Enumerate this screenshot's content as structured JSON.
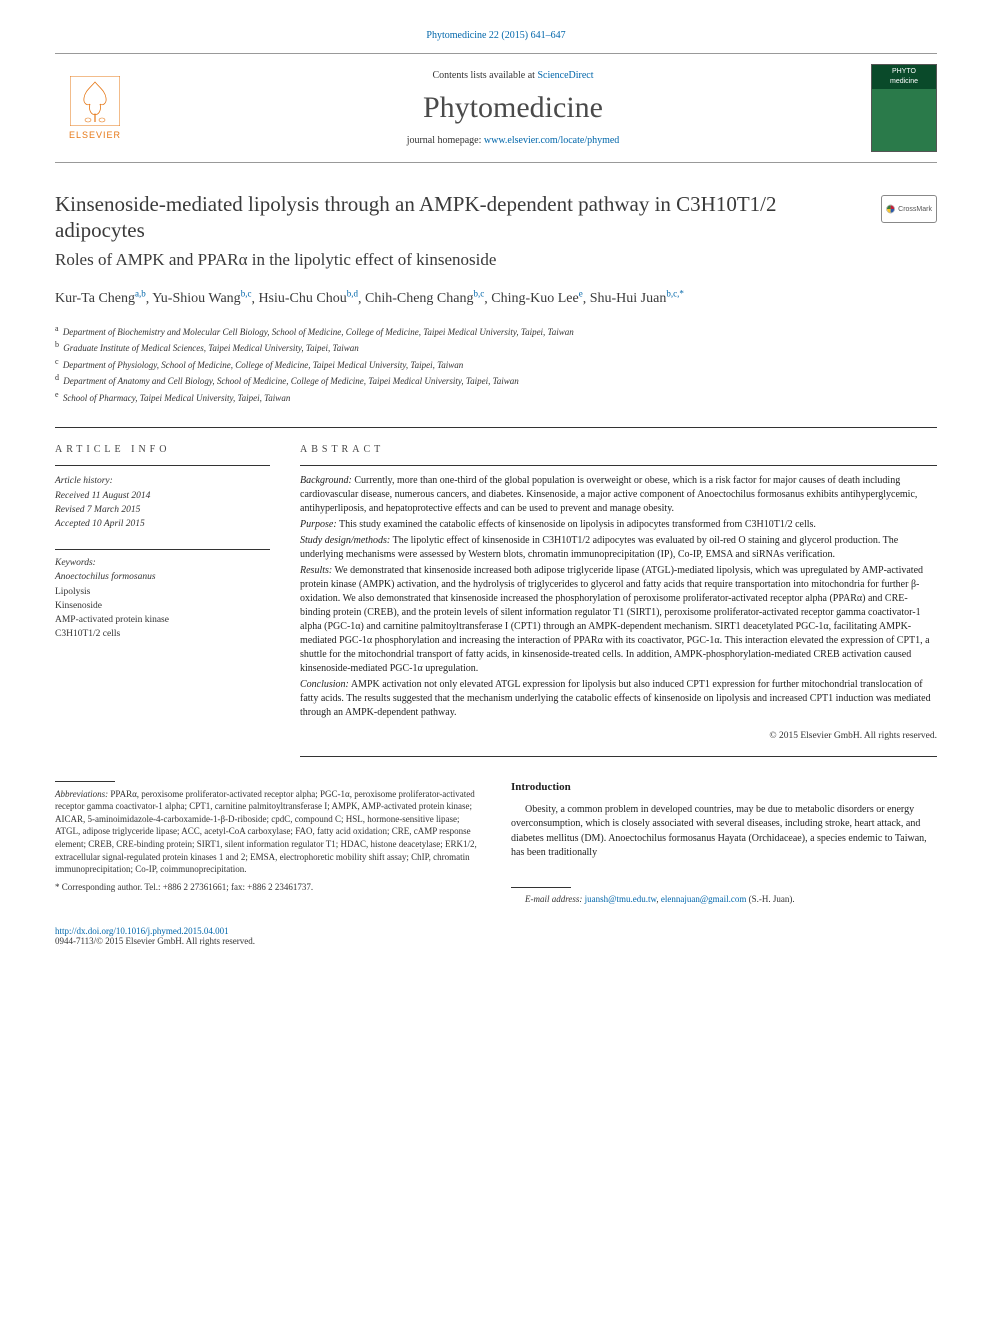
{
  "topLink": "Phytomedicine 22 (2015) 641–647",
  "masthead": {
    "contentsPrefix": "Contents lists available at ",
    "contentsLink": "ScienceDirect",
    "journal": "Phytomedicine",
    "homepagePrefix": "journal homepage: ",
    "homepageLink": "www.elsevier.com/locate/phymed",
    "publisher": "ELSEVIER",
    "coverLabel1": "PHYTO",
    "coverLabel2": "medicine"
  },
  "crossmark": "CrossMark",
  "title": "Kinsenoside-mediated lipolysis through an AMPK-dependent pathway in C3H10T1/2 adipocytes",
  "subtitle": "Roles of AMPK and PPARα in the lipolytic effect of kinsenoside",
  "authors": [
    {
      "name": "Kur-Ta Cheng",
      "sup": "a,b"
    },
    {
      "name": "Yu-Shiou Wang",
      "sup": "b,c"
    },
    {
      "name": "Hsiu-Chu Chou",
      "sup": "b,d"
    },
    {
      "name": "Chih-Cheng Chang",
      "sup": "b,c"
    },
    {
      "name": "Ching-Kuo Lee",
      "sup": "e"
    },
    {
      "name": "Shu-Hui Juan",
      "sup": "b,c,*"
    }
  ],
  "affiliations": [
    {
      "key": "a",
      "text": "Department of Biochemistry and Molecular Cell Biology, School of Medicine, College of Medicine, Taipei Medical University, Taipei, Taiwan"
    },
    {
      "key": "b",
      "text": "Graduate Institute of Medical Sciences, Taipei Medical University, Taipei, Taiwan"
    },
    {
      "key": "c",
      "text": "Department of Physiology, School of Medicine, College of Medicine, Taipei Medical University, Taipei, Taiwan"
    },
    {
      "key": "d",
      "text": "Department of Anatomy and Cell Biology, School of Medicine, College of Medicine, Taipei Medical University, Taipei, Taiwan"
    },
    {
      "key": "e",
      "text": "School of Pharmacy, Taipei Medical University, Taipei, Taiwan"
    }
  ],
  "articleInfoHead": "ARTICLE INFO",
  "abstractHead": "ABSTRACT",
  "history": {
    "label": "Article history:",
    "received": "Received 11 August 2014",
    "revised": "Revised 7 March 2015",
    "accepted": "Accepted 10 April 2015"
  },
  "keywordsLabel": "Keywords:",
  "keywords": [
    "Anoectochilus formosanus",
    "Lipolysis",
    "Kinsenoside",
    "AMP-activated protein kinase",
    "C3H10T1/2 cells"
  ],
  "abstract": {
    "background": {
      "lbl": "Background:",
      "txt": " Currently, more than one-third of the global population is overweight or obese, which is a risk factor for major causes of death including cardiovascular disease, numerous cancers, and diabetes. Kinsenoside, a major active component of Anoectochilus formosanus exhibits antihyperglycemic, antihyperliposis, and hepatoprotective effects and can be used to prevent and manage obesity."
    },
    "purpose": {
      "lbl": "Purpose:",
      "txt": " This study examined the catabolic effects of kinsenoside on lipolysis in adipocytes transformed from C3H10T1/2 cells."
    },
    "methods": {
      "lbl": "Study design/methods:",
      "txt": " The lipolytic effect of kinsenoside in C3H10T1/2 adipocytes was evaluated by oil-red O staining and glycerol production. The underlying mechanisms were assessed by Western blots, chromatin immunoprecipitation (IP), Co-IP, EMSA and siRNAs verification."
    },
    "results": {
      "lbl": "Results:",
      "txt": " We demonstrated that kinsenoside increased both adipose triglyceride lipase (ATGL)-mediated lipolysis, which was upregulated by AMP-activated protein kinase (AMPK) activation, and the hydrolysis of triglycerides to glycerol and fatty acids that require transportation into mitochondria for further β-oxidation. We also demonstrated that kinsenoside increased the phosphorylation of peroxisome proliferator-activated receptor alpha (PPARα) and CRE-binding protein (CREB), and the protein levels of silent information regulator T1 (SIRT1), peroxisome proliferator-activated receptor gamma coactivator-1 alpha (PGC-1α) and carnitine palmitoyltransferase I (CPT1) through an AMPK-dependent mechanism. SIRT1 deacetylated PGC-1α, facilitating AMPK-mediated PGC-1α phosphorylation and increasing the interaction of PPARα with its coactivator, PGC-1α. This interaction elevated the expression of CPT1, a shuttle for the mitochondrial transport of fatty acids, in kinsenoside-treated cells. In addition, AMPK-phosphorylation-mediated CREB activation caused kinsenoside-mediated PGC-1α upregulation."
    },
    "conclusion": {
      "lbl": "Conclusion:",
      "txt": " AMPK activation not only elevated ATGL expression for lipolysis but also induced CPT1 expression for further mitochondrial translocation of fatty acids. The results suggested that the mechanism underlying the catabolic effects of kinsenoside on lipolysis and increased CPT1 induction was mediated through an AMPK-dependent pathway."
    }
  },
  "copyright": "© 2015 Elsevier GmbH. All rights reserved.",
  "abbrev": {
    "lbl": "Abbreviations:",
    "txt": " PPARα, peroxisome proliferator-activated receptor alpha; PGC-1α, peroxisome proliferator-activated receptor gamma coactivator-1 alpha; CPT1, carnitine palmitoyltransferase I; AMPK, AMP-activated protein kinase; AICAR, 5-aminoimidazole-4-carboxamide-1-β-D-riboside; cpdC, compound C; HSL, hormone-sensitive lipase; ATGL, adipose triglyceride lipase; ACC, acetyl-CoA carboxylase; FAO, fatty acid oxidation; CRE, cAMP response element; CREB, CRE-binding protein; SIRT1, silent information regulator T1; HDAC, histone deacetylase; ERK1/2, extracellular signal-regulated protein kinases 1 and 2; EMSA, electrophoretic mobility shift assay; ChIP, chromatin immunoprecipitation; Co-IP, coimmunoprecipitation."
  },
  "corr": "* Corresponding author. Tel.: +886 2 27361661; fax: +886 2 23461737.",
  "introHead": "Introduction",
  "introBody": "Obesity, a common problem in developed countries, may be due to metabolic disorders or energy overconsumption, which is closely associated with several diseases, including stroke, heart attack, and diabetes mellitus (DM). Anoectochilus formosanus Hayata (Orchidaceae), a species endemic to Taiwan, has been traditionally",
  "emailLabel": "E-mail address: ",
  "email1": "juansh@tmu.edu.tw",
  "email2": "elennajuan@gmail.com",
  "emailSuffix": " (S.-H. Juan).",
  "footer": {
    "doi": "http://dx.doi.org/10.1016/j.phymed.2015.04.001",
    "rights": "0944-7113/© 2015 Elsevier GmbH. All rights reserved."
  },
  "colors": {
    "link": "#0066aa",
    "elsevier": "#e67817",
    "text": "#1a1a1a",
    "headGray": "#3a3a3a"
  }
}
